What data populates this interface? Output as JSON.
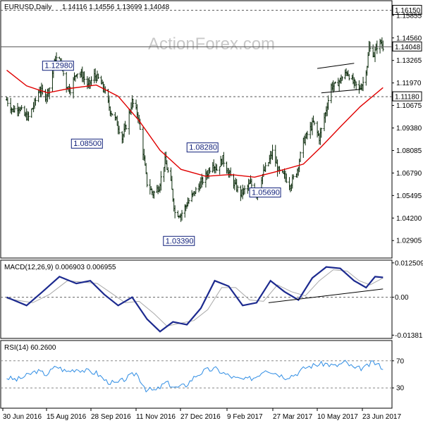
{
  "watermark": "ActionForex.com",
  "header": {
    "symbol": "EURUSD,Daily",
    "ohlc": "1.14116 1.14556 1.13699 1.14048"
  },
  "chart_data": [
    {
      "panel": "price",
      "type": "bar",
      "title": "EURUSD,Daily",
      "ylim": [
        1.019,
        1.167
      ],
      "y_ticks": [
        "1.15855",
        "1.14560",
        "1.13265",
        "1.11970",
        "1.10675",
        "1.09380",
        "1.08085",
        "1.06790",
        "1.05495",
        "1.04200",
        "1.02905"
      ],
      "x_ticks": [
        "30 Jun 2016",
        "15 Aug 2016",
        "28 Sep 2016",
        "11 Nov 2016",
        "27 Dec 2016",
        "9 Feb 2017",
        "27 Mar 2017",
        "10 May 2017",
        "23 Jun 2017"
      ],
      "price_level_labels": [
        {
          "value": 1.1615,
          "text": "1.16150",
          "style": "dashed"
        },
        {
          "value": 1.14048,
          "text": "1.14048",
          "style": "solid"
        },
        {
          "value": 1.1118,
          "text": "1.11180",
          "style": "dashed"
        }
      ],
      "annotations": [
        {
          "text": "1.12980",
          "date": "2016-09-08",
          "value": 1.1298
        },
        {
          "text": "1.08500",
          "date": "2016-10-07",
          "value": 1.085
        },
        {
          "text": "1.08280",
          "date": "2017-01-24",
          "value": 1.0828
        },
        {
          "text": "1.05690",
          "date": "2017-03-01",
          "value": 1.0569
        },
        {
          "text": "1.03390",
          "date": "2016-12-20",
          "value": 1.0339
        }
      ],
      "moving_average_color": "#e00000",
      "close_series": [
        [
          "2016-06-30",
          1.11
        ],
        [
          "2016-07-06",
          1.104
        ],
        [
          "2016-07-12",
          1.106
        ],
        [
          "2016-07-18",
          1.101
        ],
        [
          "2016-07-22",
          1.1
        ],
        [
          "2016-07-28",
          1.108
        ],
        [
          "2016-08-02",
          1.116
        ],
        [
          "2016-08-08",
          1.112
        ],
        [
          "2016-08-12",
          1.117
        ],
        [
          "2016-08-18",
          1.134
        ],
        [
          "2016-08-23",
          1.132
        ],
        [
          "2016-08-29",
          1.118
        ],
        [
          "2016-09-02",
          1.116
        ],
        [
          "2016-09-08",
          1.126
        ],
        [
          "2016-09-14",
          1.124
        ],
        [
          "2016-09-20",
          1.118
        ],
        [
          "2016-09-26",
          1.124
        ],
        [
          "2016-09-30",
          1.122
        ],
        [
          "2016-10-06",
          1.116
        ],
        [
          "2016-10-12",
          1.104
        ],
        [
          "2016-10-18",
          1.098
        ],
        [
          "2016-10-24",
          1.088
        ],
        [
          "2016-10-28",
          1.095
        ],
        [
          "2016-11-03",
          1.109
        ],
        [
          "2016-11-09",
          1.101
        ],
        [
          "2016-11-14",
          1.08
        ],
        [
          "2016-11-18",
          1.062
        ],
        [
          "2016-11-24",
          1.056
        ],
        [
          "2016-11-30",
          1.06
        ],
        [
          "2016-12-06",
          1.075
        ],
        [
          "2016-12-12",
          1.062
        ],
        [
          "2016-12-16",
          1.045
        ],
        [
          "2016-12-22",
          1.044
        ],
        [
          "2016-12-30",
          1.052
        ],
        [
          "2017-01-05",
          1.057
        ],
        [
          "2017-01-11",
          1.062
        ],
        [
          "2017-01-17",
          1.067
        ],
        [
          "2017-01-23",
          1.074
        ],
        [
          "2017-01-27",
          1.07
        ],
        [
          "2017-02-02",
          1.076
        ],
        [
          "2017-02-08",
          1.068
        ],
        [
          "2017-02-14",
          1.061
        ],
        [
          "2017-02-20",
          1.056
        ],
        [
          "2017-02-24",
          1.058
        ],
        [
          "2017-03-02",
          1.062
        ],
        [
          "2017-03-08",
          1.056
        ],
        [
          "2017-03-14",
          1.067
        ],
        [
          "2017-03-20",
          1.074
        ],
        [
          "2017-03-24",
          1.08
        ],
        [
          "2017-03-30",
          1.069
        ],
        [
          "2017-04-05",
          1.066
        ],
        [
          "2017-04-11",
          1.061
        ],
        [
          "2017-04-18",
          1.07
        ],
        [
          "2017-04-24",
          1.086
        ],
        [
          "2017-04-28",
          1.09
        ],
        [
          "2017-05-04",
          1.097
        ],
        [
          "2017-05-10",
          1.088
        ],
        [
          "2017-05-16",
          1.102
        ],
        [
          "2017-05-22",
          1.118
        ],
        [
          "2017-05-26",
          1.118
        ],
        [
          "2017-06-01",
          1.122
        ],
        [
          "2017-06-07",
          1.126
        ],
        [
          "2017-06-13",
          1.12
        ],
        [
          "2017-06-19",
          1.116
        ],
        [
          "2017-06-23",
          1.12
        ],
        [
          "2017-06-27",
          1.13
        ],
        [
          "2017-06-29",
          1.14
        ],
        [
          "2017-07-04",
          1.136
        ],
        [
          "2017-07-07",
          1.141
        ],
        [
          "2017-07-11",
          1.143
        ],
        [
          "2017-07-13",
          1.1405
        ]
      ],
      "moving_average_series": [
        [
          "2016-06-30",
          1.127
        ],
        [
          "2016-07-20",
          1.118
        ],
        [
          "2016-08-10",
          1.114
        ],
        [
          "2016-09-01",
          1.1165
        ],
        [
          "2016-09-28",
          1.1185
        ],
        [
          "2016-10-20",
          1.112
        ],
        [
          "2016-11-10",
          1.098
        ],
        [
          "2016-12-01",
          1.081
        ],
        [
          "2016-12-22",
          1.07
        ],
        [
          "2017-01-16",
          1.066
        ],
        [
          "2017-02-10",
          1.067
        ],
        [
          "2017-03-06",
          1.0655
        ],
        [
          "2017-03-30",
          1.069
        ],
        [
          "2017-04-24",
          1.073
        ],
        [
          "2017-05-12",
          1.083
        ],
        [
          "2017-06-01",
          1.095
        ],
        [
          "2017-06-20",
          1.106
        ],
        [
          "2017-07-13",
          1.117
        ]
      ],
      "trend_lines": [
        {
          "points": [
            [
              "2017-05-08",
              1.128
            ],
            [
              "2017-06-14",
              1.131
            ]
          ]
        },
        {
          "points": [
            [
              "2017-05-12",
              1.114
            ],
            [
              "2017-06-20",
              1.116
            ]
          ]
        }
      ]
    },
    {
      "panel": "macd",
      "type": "line",
      "title": "MACD(12,26,9) 0.006903 0.006955",
      "ylim": [
        -0.015,
        0.0135
      ],
      "y_ticks": [
        "0.012509",
        "0.00",
        "-0.013813"
      ],
      "series": [
        {
          "color": "#1c2a8f",
          "values": [
            [
              "2016-06-30",
              0.0
            ],
            [
              "2016-07-20",
              -0.003
            ],
            [
              "2016-08-05",
              0.002
            ],
            [
              "2016-08-22",
              0.0075
            ],
            [
              "2016-09-08",
              0.005
            ],
            [
              "2016-09-22",
              0.006
            ],
            [
              "2016-10-06",
              0.001
            ],
            [
              "2016-10-20",
              -0.003
            ],
            [
              "2016-11-03",
              0.0
            ],
            [
              "2016-11-18",
              -0.008
            ],
            [
              "2016-12-01",
              -0.0125
            ],
            [
              "2016-12-14",
              -0.009
            ],
            [
              "2016-12-28",
              -0.01
            ],
            [
              "2017-01-11",
              -0.004
            ],
            [
              "2017-01-25",
              0.006
            ],
            [
              "2017-02-08",
              0.004
            ],
            [
              "2017-02-22",
              -0.003
            ],
            [
              "2017-03-08",
              -0.002
            ],
            [
              "2017-03-22",
              0.006
            ],
            [
              "2017-04-05",
              0.002
            ],
            [
              "2017-04-19",
              -0.001
            ],
            [
              "2017-05-03",
              0.007
            ],
            [
              "2017-05-17",
              0.011
            ],
            [
              "2017-05-31",
              0.0105
            ],
            [
              "2017-06-14",
              0.006
            ],
            [
              "2017-06-26",
              0.0035
            ],
            [
              "2017-07-05",
              0.0075
            ],
            [
              "2017-07-13",
              0.0072
            ]
          ]
        },
        {
          "color": "#a9a9a9",
          "values": [
            [
              "2016-06-30",
              -0.0005
            ],
            [
              "2016-07-26",
              -0.002
            ],
            [
              "2016-08-12",
              0.001
            ],
            [
              "2016-08-30",
              0.006
            ],
            [
              "2016-09-15",
              0.0055
            ],
            [
              "2016-09-29",
              0.005
            ],
            [
              "2016-10-13",
              0.0015
            ],
            [
              "2016-10-27",
              -0.002
            ],
            [
              "2016-11-10",
              -0.0015
            ],
            [
              "2016-11-25",
              -0.006
            ],
            [
              "2016-12-08",
              -0.0105
            ],
            [
              "2016-12-21",
              -0.0095
            ],
            [
              "2017-01-04",
              -0.0085
            ],
            [
              "2017-01-18",
              -0.0045
            ],
            [
              "2017-02-01",
              0.0035
            ],
            [
              "2017-02-15",
              0.0035
            ],
            [
              "2017-03-01",
              -0.001
            ],
            [
              "2017-03-15",
              -0.0015
            ],
            [
              "2017-03-29",
              0.0045
            ],
            [
              "2017-04-12",
              0.002
            ],
            [
              "2017-04-26",
              0.0005
            ],
            [
              "2017-05-10",
              0.006
            ],
            [
              "2017-05-24",
              0.01
            ],
            [
              "2017-06-07",
              0.0095
            ],
            [
              "2017-06-19",
              0.006
            ],
            [
              "2017-06-30",
              0.0045
            ],
            [
              "2017-07-13",
              0.007
            ]
          ]
        }
      ],
      "trend_lines": [
        {
          "points": [
            [
              "2017-03-20",
              -0.002
            ],
            [
              "2017-07-13",
              0.003
            ]
          ]
        }
      ]
    },
    {
      "panel": "rsi",
      "type": "line",
      "title": "RSI(14) 60.2600",
      "ylim": [
        0,
        100
      ],
      "y_ticks": [
        "70",
        "30"
      ],
      "series": [
        {
          "color": "#2f8de4",
          "values": [
            [
              "2016-06-30",
              45
            ],
            [
              "2016-07-10",
              42
            ],
            [
              "2016-07-20",
              48
            ],
            [
              "2016-07-30",
              55
            ],
            [
              "2016-08-09",
              50
            ],
            [
              "2016-08-19",
              62
            ],
            [
              "2016-08-29",
              54
            ],
            [
              "2016-09-08",
              58
            ],
            [
              "2016-09-18",
              55
            ],
            [
              "2016-09-28",
              52
            ],
            [
              "2016-10-08",
              40
            ],
            [
              "2016-10-18",
              36
            ],
            [
              "2016-10-28",
              44
            ],
            [
              "2016-11-07",
              52
            ],
            [
              "2016-11-17",
              28
            ],
            [
              "2016-11-27",
              26
            ],
            [
              "2016-12-07",
              38
            ],
            [
              "2016-12-17",
              30
            ],
            [
              "2016-12-27",
              34
            ],
            [
              "2017-01-06",
              48
            ],
            [
              "2017-01-16",
              56
            ],
            [
              "2017-01-26",
              58
            ],
            [
              "2017-02-05",
              50
            ],
            [
              "2017-02-15",
              44
            ],
            [
              "2017-02-25",
              42
            ],
            [
              "2017-03-07",
              46
            ],
            [
              "2017-03-17",
              58
            ],
            [
              "2017-03-27",
              52
            ],
            [
              "2017-04-06",
              46
            ],
            [
              "2017-04-16",
              50
            ],
            [
              "2017-04-26",
              60
            ],
            [
              "2017-05-06",
              64
            ],
            [
              "2017-05-16",
              66
            ],
            [
              "2017-05-26",
              62
            ],
            [
              "2017-06-05",
              68
            ],
            [
              "2017-06-15",
              58
            ],
            [
              "2017-06-25",
              60
            ],
            [
              "2017-07-03",
              68
            ],
            [
              "2017-07-13",
              60
            ]
          ]
        }
      ]
    }
  ]
}
